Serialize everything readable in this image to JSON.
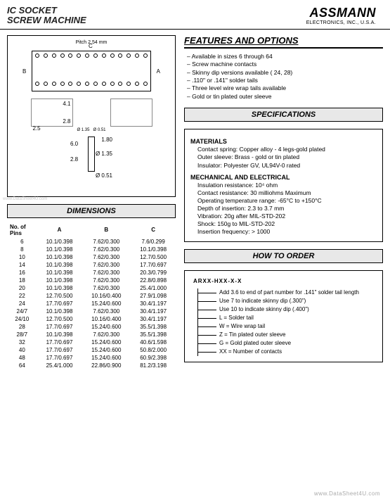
{
  "header": {
    "title_line1": "IC SOCKET",
    "title_line2": "SCREW MACHINE",
    "logo_main": "ASSMANN",
    "logo_sub": "ELECTRONICS, INC., U.S.A."
  },
  "diagram": {
    "pitch_label": "Pitch 2.54 mm",
    "dim_a": "A",
    "dim_b": "B",
    "dim_c": "C",
    "lead_dims": [
      "2.5",
      "4.1",
      "2.8",
      "Ø 1.35",
      "Ø 0.51"
    ],
    "pin_dims": [
      "1.80",
      "6.0",
      "2.8",
      "Ø 1.35",
      "Ø 0.51"
    ]
  },
  "dimensions": {
    "title": "DIMENSIONS",
    "head_pins": "No. of\nPins",
    "head_a": "A",
    "head_b": "B",
    "head_c": "C",
    "rows": [
      {
        "p": "6",
        "a": "10.1/0.398",
        "b": "7.62/0.300",
        "c": "7.6/0.299"
      },
      {
        "p": "8",
        "a": "10.1/0.398",
        "b": "7.62/0.300",
        "c": "10.1/0.398"
      },
      {
        "p": "10",
        "a": "10.1/0.398",
        "b": "7.62/0.300",
        "c": "12.7/0.500"
      },
      {
        "p": "14",
        "a": "10.1/0.398",
        "b": "7.62/0.300",
        "c": "17.7/0.697"
      },
      {
        "p": "16",
        "a": "10.1/0.398",
        "b": "7.62/0.300",
        "c": "20.3/0.799"
      },
      {
        "p": "18",
        "a": "10.1/0.398",
        "b": "7.62/0.300",
        "c": "22.8/0.898"
      },
      {
        "p": "20",
        "a": "10.1/0.398",
        "b": "7.62/0.300",
        "c": "25.4/1.000"
      },
      {
        "p": "22",
        "a": "12.7/0.500",
        "b": "10.16/0.400",
        "c": "27.9/1.098"
      },
      {
        "p": "24",
        "a": "17.7/0.697",
        "b": "15.24/0.600",
        "c": "30.4/1.197"
      },
      {
        "p": "24/7",
        "a": "10.1/0.398",
        "b": "7.62/0.300",
        "c": "30.4/1.197"
      },
      {
        "p": "24/10",
        "a": "12.7/0.500",
        "b": "10.16/0.400",
        "c": "30.4/1.197"
      },
      {
        "p": "28",
        "a": "17.7/0.697",
        "b": "15.24/0.600",
        "c": "35.5/1.398"
      },
      {
        "p": "28/7",
        "a": "10.1/0.398",
        "b": "7.62/0.300",
        "c": "35.5/1.398"
      },
      {
        "p": "32",
        "a": "17.7/0.697",
        "b": "15.24/0.600",
        "c": "40.6/1.598"
      },
      {
        "p": "40",
        "a": "17.7/0.697",
        "b": "15.24/0.600",
        "c": "50.8/2.000"
      },
      {
        "p": "48",
        "a": "17.7/0.697",
        "b": "15.24/0.600",
        "c": "60.9/2.398"
      },
      {
        "p": "64",
        "a": "25.4/1.000",
        "b": "22.86/0.900",
        "c": "81.2/3.198"
      }
    ]
  },
  "features": {
    "title": "FEATURES AND OPTIONS",
    "items": [
      "Available in sizes 6 through 64",
      "Screw machine contacts",
      "Skinny dip versions available ( 24, 28)",
      ".110\" or .141\" solder tails",
      "Three level wire wrap tails available",
      "Gold or tin plated outer sleeve"
    ]
  },
  "specs": {
    "title": "SPECIFICATIONS",
    "materials_h": "MATERIALS",
    "materials": [
      "Contact spring: Copper alloy - 4 legs-gold plated",
      "Outer sleeve: Brass - gold or tin plated",
      "Insulator: Polyester GV, UL94V-0 rated"
    ],
    "mech_h": "MECHANICAL AND ELECTRICAL",
    "mech": [
      "Insulation resistance: 10⁴ ohm",
      "Contact resistance: 30 milliohms Maximum",
      "Operating temperature range: -65°C to +150°C",
      "Depth of insertion: 2.3 to 3.7 mm",
      "Vibration: 20g after MIL-STD-202",
      "Shock: 150g to MIL-STD-202",
      "Insertion frequency: > 1000"
    ]
  },
  "order": {
    "title": "HOW TO ORDER",
    "code": "ARXX-HXX-X-X",
    "lines": [
      "Add 3.6 to end of part number for .141\" solder tail length",
      "Use 7 to indicate skinny dip (.300\")",
      "Use 10 to indicate skinny dip (.400\")",
      "L = Solder tail",
      "W = Wire wrap tail",
      "Z = Tin plated outer sleeve",
      "G = Gold plated outer sleeve",
      "XX = Number of contacts"
    ]
  },
  "watermark": "www.DataSheet4U.com"
}
